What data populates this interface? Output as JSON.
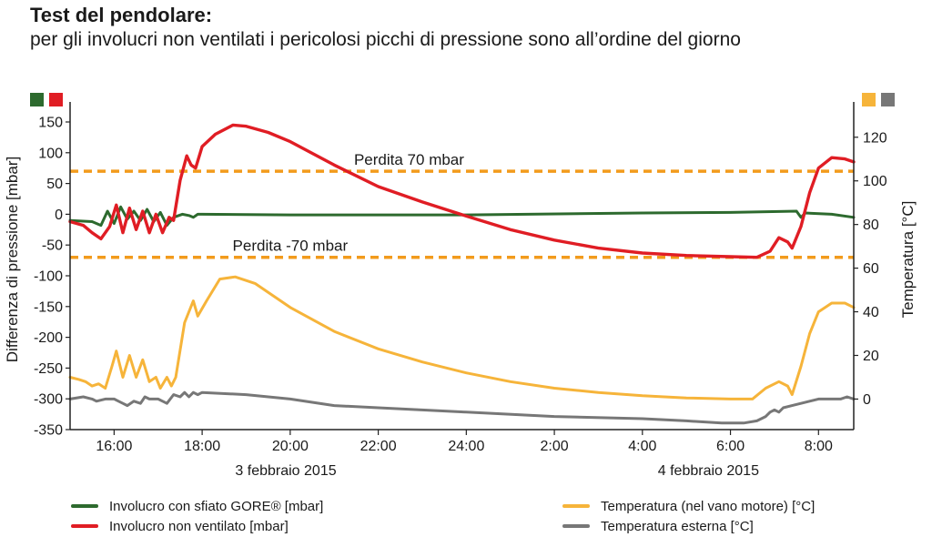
{
  "header": {
    "title": "Test del pendolare:",
    "subtitle": "per gli involucri non ventilati i pericolosi picchi di pressione sono all’ordine del giorno"
  },
  "colors": {
    "green": "#2d6a2e",
    "red": "#e01d24",
    "orange": "#f6b43a",
    "gray": "#777777",
    "dashed": "#f29b1c",
    "axis": "#222222"
  },
  "chart_data": {
    "type": "line",
    "ylabel": "Differenza di pressione [mbar]",
    "y2label": "Temperatura [°C]",
    "ylim": [
      -350,
      150
    ],
    "y2lim": [
      -14,
      127
    ],
    "yticks": [
      150,
      100,
      50,
      0,
      -50,
      -100,
      -150,
      -200,
      -250,
      -300,
      -350
    ],
    "y2ticks": [
      120,
      100,
      80,
      60,
      40,
      20,
      0
    ],
    "xlim": [
      15.0,
      32.8
    ],
    "xticks": [
      {
        "x": 16,
        "label": "16:00"
      },
      {
        "x": 18,
        "label": "18:00"
      },
      {
        "x": 20,
        "label": "20:00"
      },
      {
        "x": 22,
        "label": "22:00"
      },
      {
        "x": 24,
        "label": "24:00"
      },
      {
        "x": 26,
        "label": "2:00"
      },
      {
        "x": 28,
        "label": "4:00"
      },
      {
        "x": 30,
        "label": "6:00"
      },
      {
        "x": 32,
        "label": "8:00"
      }
    ],
    "date_labels": [
      {
        "x": 19.9,
        "label": "3 febbraio 2015"
      },
      {
        "x": 29.5,
        "label": "4 febbraio 2015"
      }
    ],
    "reference_lines": [
      {
        "y": 70,
        "label": "Perdita 70 mbar",
        "label_x": 22.7
      },
      {
        "y": -70,
        "label": "Perdita -70 mbar",
        "label_x": 20.0
      }
    ],
    "series": [
      {
        "name": "Involucro con sfiato GORE® [mbar]",
        "axis": "left",
        "color": "green",
        "points": [
          [
            15.0,
            -10
          ],
          [
            15.5,
            -12
          ],
          [
            15.7,
            -18
          ],
          [
            15.85,
            5
          ],
          [
            16.0,
            -15
          ],
          [
            16.15,
            12
          ],
          [
            16.3,
            -8
          ],
          [
            16.45,
            5
          ],
          [
            16.6,
            -10
          ],
          [
            16.75,
            8
          ],
          [
            16.9,
            -12
          ],
          [
            17.05,
            3
          ],
          [
            17.2,
            -18
          ],
          [
            17.35,
            -5
          ],
          [
            17.55,
            0
          ],
          [
            17.7,
            -2
          ],
          [
            17.8,
            -5
          ],
          [
            17.9,
            0
          ],
          [
            18.0,
            0
          ],
          [
            20.0,
            -1
          ],
          [
            24.0,
            -1
          ],
          [
            28.0,
            2
          ],
          [
            30.0,
            3
          ],
          [
            31.5,
            5
          ],
          [
            31.6,
            -5
          ],
          [
            31.7,
            2
          ],
          [
            32.3,
            0
          ],
          [
            32.8,
            -5
          ]
        ]
      },
      {
        "name": "Involucro non ventilato [mbar]",
        "axis": "left",
        "color": "red",
        "points": [
          [
            15.0,
            -12
          ],
          [
            15.3,
            -18
          ],
          [
            15.5,
            -30
          ],
          [
            15.7,
            -40
          ],
          [
            15.9,
            -20
          ],
          [
            16.05,
            15
          ],
          [
            16.2,
            -30
          ],
          [
            16.35,
            10
          ],
          [
            16.5,
            -25
          ],
          [
            16.65,
            5
          ],
          [
            16.8,
            -30
          ],
          [
            16.95,
            0
          ],
          [
            17.1,
            -30
          ],
          [
            17.25,
            -5
          ],
          [
            17.35,
            -10
          ],
          [
            17.5,
            55
          ],
          [
            17.65,
            95
          ],
          [
            17.75,
            80
          ],
          [
            17.85,
            75
          ],
          [
            18.0,
            110
          ],
          [
            18.3,
            130
          ],
          [
            18.7,
            145
          ],
          [
            19.0,
            143
          ],
          [
            19.5,
            133
          ],
          [
            20.0,
            118
          ],
          [
            21.0,
            80
          ],
          [
            22.0,
            45
          ],
          [
            23.0,
            20
          ],
          [
            24.0,
            -3
          ],
          [
            25.0,
            -25
          ],
          [
            26.0,
            -42
          ],
          [
            27.0,
            -55
          ],
          [
            28.0,
            -63
          ],
          [
            29.0,
            -67
          ],
          [
            30.0,
            -69
          ],
          [
            30.6,
            -70
          ],
          [
            30.9,
            -60
          ],
          [
            31.1,
            -38
          ],
          [
            31.3,
            -45
          ],
          [
            31.4,
            -55
          ],
          [
            31.6,
            -20
          ],
          [
            31.8,
            35
          ],
          [
            32.0,
            75
          ],
          [
            32.3,
            92
          ],
          [
            32.6,
            90
          ],
          [
            32.8,
            85
          ]
        ]
      },
      {
        "name": "Temperatura (nel vano motore) [°C]",
        "axis": "right",
        "color": "orange",
        "points": [
          [
            15.0,
            10
          ],
          [
            15.2,
            9
          ],
          [
            15.35,
            8
          ],
          [
            15.5,
            6
          ],
          [
            15.65,
            7
          ],
          [
            15.8,
            5
          ],
          [
            15.95,
            15
          ],
          [
            16.05,
            22
          ],
          [
            16.2,
            10
          ],
          [
            16.35,
            20
          ],
          [
            16.5,
            10
          ],
          [
            16.65,
            18
          ],
          [
            16.8,
            8
          ],
          [
            16.95,
            10
          ],
          [
            17.05,
            5
          ],
          [
            17.2,
            10
          ],
          [
            17.3,
            6
          ],
          [
            17.4,
            10
          ],
          [
            17.6,
            35
          ],
          [
            17.8,
            45
          ],
          [
            17.9,
            38
          ],
          [
            18.1,
            45
          ],
          [
            18.4,
            55
          ],
          [
            18.75,
            56
          ],
          [
            19.2,
            53
          ],
          [
            20.0,
            42
          ],
          [
            21.0,
            31
          ],
          [
            22.0,
            23
          ],
          [
            23.0,
            17
          ],
          [
            24.0,
            12
          ],
          [
            25.0,
            8
          ],
          [
            26.0,
            5
          ],
          [
            27.0,
            3
          ],
          [
            28.0,
            1.5
          ],
          [
            29.0,
            0.5
          ],
          [
            30.0,
            0
          ],
          [
            30.5,
            0
          ],
          [
            30.8,
            5
          ],
          [
            31.1,
            8
          ],
          [
            31.3,
            6
          ],
          [
            31.4,
            2
          ],
          [
            31.6,
            15
          ],
          [
            31.8,
            30
          ],
          [
            32.0,
            40
          ],
          [
            32.3,
            44
          ],
          [
            32.6,
            44
          ],
          [
            32.8,
            42
          ]
        ]
      },
      {
        "name": "Temperatura esterna [°C]",
        "axis": "right",
        "color": "gray",
        "points": [
          [
            15.0,
            0
          ],
          [
            15.3,
            1
          ],
          [
            15.5,
            0
          ],
          [
            15.6,
            -1
          ],
          [
            15.8,
            0
          ],
          [
            16.0,
            0
          ],
          [
            16.1,
            -1
          ],
          [
            16.2,
            -2
          ],
          [
            16.3,
            -3
          ],
          [
            16.45,
            -1
          ],
          [
            16.6,
            -2
          ],
          [
            16.7,
            1
          ],
          [
            16.8,
            0
          ],
          [
            17.0,
            0
          ],
          [
            17.1,
            -1
          ],
          [
            17.2,
            -2
          ],
          [
            17.35,
            2
          ],
          [
            17.5,
            1
          ],
          [
            17.6,
            3
          ],
          [
            17.7,
            1
          ],
          [
            17.8,
            3
          ],
          [
            17.9,
            2
          ],
          [
            18.0,
            3
          ],
          [
            19.0,
            2
          ],
          [
            20.0,
            0
          ],
          [
            21.0,
            -3
          ],
          [
            22.0,
            -4
          ],
          [
            24.0,
            -6
          ],
          [
            26.0,
            -8
          ],
          [
            28.0,
            -9
          ],
          [
            29.0,
            -10
          ],
          [
            29.8,
            -11
          ],
          [
            30.3,
            -11
          ],
          [
            30.6,
            -10
          ],
          [
            30.8,
            -8
          ],
          [
            30.9,
            -6
          ],
          [
            31.0,
            -5
          ],
          [
            31.1,
            -6
          ],
          [
            31.2,
            -4
          ],
          [
            31.4,
            -3
          ],
          [
            31.6,
            -2
          ],
          [
            31.8,
            -1
          ],
          [
            32.0,
            0
          ],
          [
            32.3,
            0
          ],
          [
            32.5,
            0
          ],
          [
            32.65,
            1
          ],
          [
            32.8,
            0
          ]
        ]
      }
    ]
  }
}
